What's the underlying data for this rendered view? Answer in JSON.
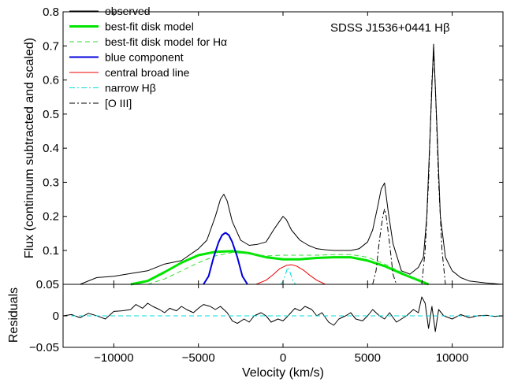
{
  "chart_data": [
    {
      "type": "line",
      "panel": "main",
      "annotation": "SDSS J1536+0441 Hβ",
      "ylabel": "Flux (continuum subtracted and scaled)",
      "xlim": [
        -13000,
        13000
      ],
      "ylim": [
        0.05,
        0.8
      ],
      "xticks": [
        -10000,
        -5000,
        0,
        5000,
        10000
      ],
      "xtick_labels": [
        "−10000",
        "−5000",
        "0",
        "5000",
        "10000"
      ],
      "yticks": [
        0.05,
        0.1,
        0.2,
        0.3,
        0.4,
        0.5,
        0.6,
        0.7,
        0.8
      ],
      "ytick_labels": [
        "0.05",
        "0.1",
        "0.2",
        "0.3",
        "0.4",
        "0.5",
        "0.6",
        "0.7",
        "0.8"
      ],
      "grid": false,
      "legend_position": "top-left",
      "series": [
        {
          "name": "observed",
          "color": "#000000",
          "style": "solid",
          "x": [
            -12000,
            -11000,
            -10000,
            -9000,
            -8000,
            -7000,
            -6000,
            -5000,
            -4500,
            -4000,
            -3700,
            -3500,
            -3300,
            -3000,
            -2500,
            -2000,
            -1500,
            -1000,
            -500,
            0,
            200,
            500,
            1000,
            1500,
            2000,
            2500,
            3000,
            3500,
            4000,
            4500,
            5000,
            5300,
            5600,
            5800,
            6000,
            6200,
            6500,
            7000,
            7500,
            8000,
            8300,
            8500,
            8700,
            8900,
            9100,
            9300,
            9600,
            10000,
            10500,
            11000,
            12000,
            13000
          ],
          "y": [
            0.05,
            0.06,
            0.062,
            0.066,
            0.07,
            0.08,
            0.085,
            0.105,
            0.13,
            0.2,
            0.25,
            0.265,
            0.245,
            0.185,
            0.13,
            0.115,
            0.118,
            0.125,
            0.165,
            0.2,
            0.19,
            0.16,
            0.13,
            0.115,
            0.105,
            0.102,
            0.1,
            0.1,
            0.1,
            0.105,
            0.125,
            0.16,
            0.23,
            0.28,
            0.298,
            0.22,
            0.12,
            0.07,
            0.065,
            0.075,
            0.09,
            0.2,
            0.45,
            0.705,
            0.46,
            0.2,
            0.09,
            0.07,
            0.06,
            0.055,
            0.052,
            0.05
          ]
        },
        {
          "name": "best-fit disk model",
          "color": "#00e600",
          "style": "solid",
          "x": [
            -9000,
            -8000,
            -7000,
            -6000,
            -5000,
            -4000,
            -3000,
            -2000,
            -1000,
            0,
            1000,
            2000,
            3000,
            4000,
            5000,
            6000,
            7000,
            8000,
            8600
          ],
          "y": [
            0.05,
            0.055,
            0.068,
            0.082,
            0.093,
            0.098,
            0.099,
            0.096,
            0.09,
            0.087,
            0.087,
            0.089,
            0.09,
            0.09,
            0.085,
            0.077,
            0.066,
            0.056,
            0.05
          ]
        },
        {
          "name": "best-fit disk model for Hα",
          "color": "#33dd33",
          "style": "dashed",
          "x": [
            -8000,
            -7000,
            -6000,
            -5000,
            -4000,
            -3000,
            -2000,
            -1000,
            0,
            1000,
            2000,
            3000,
            4000,
            5000,
            6000,
            7000,
            8000,
            8500
          ],
          "y": [
            0.05,
            0.058,
            0.07,
            0.082,
            0.092,
            0.097,
            0.095,
            0.092,
            0.093,
            0.093,
            0.093,
            0.094,
            0.094,
            0.09,
            0.08,
            0.068,
            0.055,
            0.05
          ]
        },
        {
          "name": "blue component",
          "color": "#0000dd",
          "style": "solid",
          "x": [
            -4700,
            -4400,
            -4100,
            -3800,
            -3600,
            -3400,
            -3200,
            -3000,
            -2700,
            -2400,
            -2100
          ],
          "y": [
            0.05,
            0.062,
            0.09,
            0.125,
            0.145,
            0.152,
            0.145,
            0.125,
            0.09,
            0.062,
            0.05
          ]
        },
        {
          "name": "central broad line",
          "color": "#ee0000",
          "style": "solid",
          "x": [
            -1600,
            -1000,
            -600,
            -200,
            200,
            500,
            800,
            1200,
            1600,
            2000,
            2500
          ],
          "y": [
            0.05,
            0.056,
            0.064,
            0.073,
            0.078,
            0.079,
            0.077,
            0.071,
            0.063,
            0.056,
            0.05
          ]
        },
        {
          "name": "narrow Hβ",
          "color": "#00dddd",
          "style": "dashdot",
          "x": [
            -150,
            0,
            150,
            250,
            300,
            350,
            450,
            600,
            750
          ],
          "y": [
            0.05,
            0.054,
            0.065,
            0.073,
            0.075,
            0.073,
            0.065,
            0.054,
            0.05
          ]
        },
        {
          "name": "[O III]",
          "color": "#000000",
          "style": "dashdot",
          "x": [
            5300,
            5500,
            5700,
            5900,
            6000,
            6100,
            6300,
            6500,
            6700,
            8200,
            8400,
            8600,
            8800,
            8900,
            9000,
            9200,
            9400,
            9600
          ],
          "y": [
            0.05,
            0.07,
            0.13,
            0.2,
            0.222,
            0.2,
            0.12,
            0.065,
            0.05,
            0.05,
            0.1,
            0.3,
            0.6,
            0.68,
            0.58,
            0.3,
            0.1,
            0.05
          ]
        }
      ]
    },
    {
      "type": "line",
      "panel": "residuals",
      "xlabel": "Velocity (km/s)",
      "ylabel": "Residuals",
      "xlim": [
        -13000,
        13000
      ],
      "ylim": [
        -0.05,
        0.05
      ],
      "xticks": [
        -10000,
        -5000,
        0,
        5000,
        10000
      ],
      "xtick_labels": [
        "−10000",
        "−5000",
        "0",
        "5000",
        "10000"
      ],
      "yticks": [
        -0.05,
        0,
        0.05
      ],
      "ytick_labels": [
        "−0.05",
        "0",
        "0.05"
      ],
      "grid": false,
      "series": [
        {
          "color": "#000000",
          "style": "solid",
          "x": [
            -13000,
            -12500,
            -12000,
            -11500,
            -11000,
            -10500,
            -10000,
            -9500,
            -9000,
            -8700,
            -8300,
            -8000,
            -7700,
            -7300,
            -7000,
            -6700,
            -6300,
            -6000,
            -5700,
            -5300,
            -5000,
            -4700,
            -4300,
            -4000,
            -3700,
            -3300,
            -3000,
            -2700,
            -2300,
            -2000,
            -1700,
            -1300,
            -1000,
            -700,
            -300,
            0,
            300,
            700,
            1000,
            1300,
            1700,
            2000,
            2300,
            2700,
            3000,
            3300,
            3700,
            4000,
            4300,
            4700,
            5000,
            5300,
            5700,
            6000,
            6300,
            6700,
            7000,
            7300,
            7700,
            8000,
            8200,
            8400,
            8600,
            8800,
            9000,
            9200,
            9500,
            10000,
            10500,
            11000,
            11500,
            12000,
            12500,
            13000
          ],
          "y": [
            0.0,
            0.002,
            -0.003,
            0.004,
            0.0,
            -0.005,
            0.007,
            0.008,
            0.01,
            0.018,
            0.012,
            0.02,
            0.015,
            0.01,
            0.005,
            0.012,
            0.008,
            0.015,
            0.01,
            0.005,
            0.012,
            0.018,
            0.015,
            0.01,
            0.015,
            0.005,
            -0.008,
            -0.012,
            -0.005,
            -0.01,
            0.0,
            0.005,
            0.0,
            -0.01,
            -0.005,
            -0.008,
            0.0,
            0.012,
            0.008,
            0.015,
            0.01,
            0.0,
            0.005,
            -0.01,
            -0.015,
            -0.005,
            0.0,
            0.005,
            -0.005,
            -0.008,
            0.0,
            0.01,
            0.0,
            -0.005,
            0.005,
            -0.01,
            -0.005,
            0.0,
            0.01,
            0.005,
            0.03,
            0.02,
            -0.02,
            0.015,
            -0.025,
            0.01,
            0.0,
            -0.005,
            0.002,
            -0.003,
            0.0,
            0.001,
            -0.001,
            0.0
          ]
        },
        {
          "color": "#00dddd",
          "style": "dashed",
          "x": [
            -13000,
            13000
          ],
          "y": [
            0,
            0
          ]
        }
      ]
    }
  ]
}
